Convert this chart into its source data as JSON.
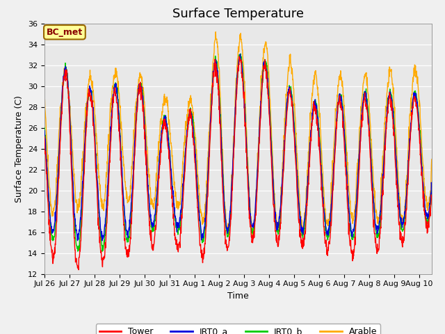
{
  "title": "Surface Temperature",
  "xlabel": "Time",
  "ylabel": "Surface Temperature (C)",
  "ylim": [
    12,
    36
  ],
  "yticks": [
    12,
    14,
    16,
    18,
    20,
    22,
    24,
    26,
    28,
    30,
    32,
    34,
    36
  ],
  "fig_facecolor": "#f0f0f0",
  "plot_bg_color": "#e8e8e8",
  "box_label": "BC_met",
  "box_facecolor": "#ffff99",
  "box_edgecolor": "#996600",
  "box_textcolor": "#880000",
  "legend_entries": [
    "Tower",
    "IRT0_a",
    "IRT0_b",
    "Arable"
  ],
  "line_colors": [
    "#ff0000",
    "#0000dd",
    "#00cc00",
    "#ffaa00"
  ],
  "n_days": 15.5,
  "xtick_labels": [
    "Jul 26",
    "Jul 27",
    "Jul 28",
    "Jul 29",
    "Jul 30",
    "Jul 31",
    "Aug 1",
    "Aug 2",
    "Aug 3",
    "Aug 4",
    "Aug 5",
    "Aug 6",
    "Aug 7",
    "Aug 8",
    "Aug 9",
    "Aug 10"
  ],
  "title_fontsize": 13,
  "axis_label_fontsize": 9,
  "tick_fontsize": 8,
  "day_peaks_tower": [
    29.0,
    32.0,
    29.0,
    30.0,
    30.0,
    26.0,
    27.5,
    33.0,
    32.5,
    32.0,
    29.0,
    28.0,
    29.0,
    29.0,
    29.0,
    29.0
  ],
  "day_peaks_irt0a": [
    29.2,
    32.2,
    29.2,
    30.2,
    30.2,
    26.2,
    27.7,
    33.2,
    32.7,
    32.2,
    29.2,
    28.2,
    29.2,
    29.2,
    29.2,
    29.2
  ],
  "day_peaks_irt0b": [
    29.4,
    32.2,
    29.2,
    30.4,
    30.2,
    26.4,
    27.9,
    33.4,
    32.9,
    32.4,
    29.4,
    28.4,
    29.4,
    29.4,
    29.4,
    29.4
  ],
  "day_peaks_arable": [
    32.0,
    31.5,
    30.8,
    31.5,
    31.0,
    28.5,
    28.5,
    35.5,
    34.5,
    34.0,
    32.0,
    31.0,
    31.0,
    31.0,
    31.5,
    31.5
  ],
  "day_nights_tower": [
    14.3,
    12.5,
    13.2,
    13.2,
    14.5,
    15.0,
    13.5,
    13.8,
    15.5,
    15.0,
    14.8,
    14.5,
    13.8,
    14.0,
    14.3,
    16.5
  ],
  "day_nights_irt0a": [
    16.3,
    15.5,
    15.5,
    15.5,
    16.5,
    17.0,
    15.5,
    16.0,
    16.5,
    16.5,
    16.3,
    16.0,
    15.8,
    16.0,
    16.3,
    17.5
  ],
  "day_nights_irt0b": [
    15.8,
    14.2,
    14.5,
    14.5,
    16.0,
    16.5,
    15.0,
    15.5,
    16.0,
    16.0,
    15.8,
    15.5,
    15.3,
    15.5,
    15.8,
    17.0
  ],
  "day_nights_arable": [
    17.5,
    18.5,
    18.0,
    19.5,
    18.5,
    19.0,
    17.5,
    16.0,
    16.0,
    16.5,
    16.5,
    16.5,
    17.0,
    17.5,
    16.5,
    18.5
  ]
}
